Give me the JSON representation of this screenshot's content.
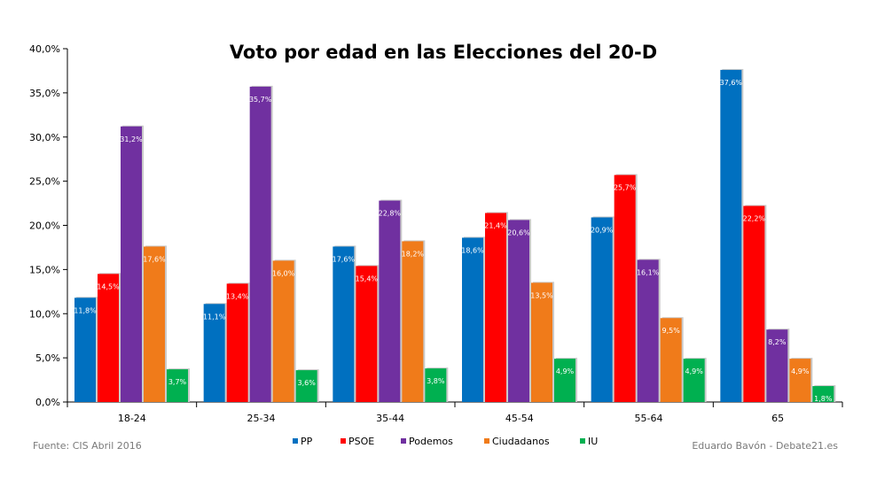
{
  "chart_data": {
    "type": "bar",
    "title": "Voto por edad en las Elecciones del 20-D",
    "categories": [
      "18-24",
      "25-34",
      "35-44",
      "45-54",
      "55-64",
      "65"
    ],
    "series": [
      {
        "name": "PP",
        "color": "#0070c0",
        "values": [
          11.8,
          11.1,
          17.6,
          18.6,
          20.9,
          37.6
        ],
        "labels": [
          "11,8%",
          "11,1%",
          "17,6%",
          "18,6%",
          "20,9%",
          "37,6%"
        ]
      },
      {
        "name": "PSOE",
        "color": "#ff0000",
        "values": [
          14.5,
          13.4,
          15.4,
          21.4,
          25.7,
          22.2
        ],
        "labels": [
          "14,5%",
          "13,4%",
          "15,4%",
          "21,4%",
          "25,7%",
          "22,2%"
        ]
      },
      {
        "name": "Podemos",
        "color": "#7030a0",
        "values": [
          31.2,
          35.7,
          22.8,
          20.6,
          16.1,
          8.2
        ],
        "labels": [
          "31,2%",
          "35,7%",
          "22,8%",
          "20,6%",
          "16,1%",
          "8,2%"
        ]
      },
      {
        "name": "Ciudadanos",
        "color": "#f07b1a",
        "values": [
          17.6,
          16.0,
          18.2,
          13.5,
          9.5,
          4.9
        ],
        "labels": [
          "17,6%",
          "16,0%",
          "18,2%",
          "13,5%",
          "9,5%",
          "4,9%"
        ]
      },
      {
        "name": "IU",
        "color": "#00b050",
        "values": [
          3.7,
          3.6,
          3.8,
          4.9,
          4.9,
          1.8
        ],
        "labels": [
          "3,7%",
          "3,6%",
          "3,8%",
          "4,9%",
          "4,9%",
          "1,8%"
        ]
      }
    ],
    "ylim": [
      0,
      40
    ],
    "yticks": [
      0,
      5,
      10,
      15,
      20,
      25,
      30,
      35,
      40
    ],
    "ytick_labels": [
      "0,0%",
      "5,0%",
      "10,0%",
      "15,0%",
      "20,0%",
      "25,0%",
      "30,0%",
      "35,0%",
      "40,0%"
    ],
    "legend_position": "bottom",
    "grid": false
  },
  "footer": {
    "source": "Fuente: CIS Abril 2016",
    "author": "Eduardo Bavón - Debate21.es"
  }
}
